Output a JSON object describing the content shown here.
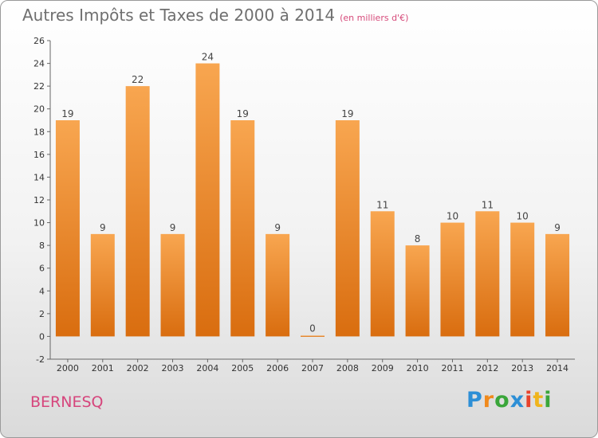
{
  "title": "Autres Impôts et Taxes de 2000 à 2014",
  "subtitle": "(en milliers d'€)",
  "commune": "BERNESQ",
  "logo": {
    "letters": [
      "P",
      "r",
      "o",
      "x",
      "i",
      "t",
      "i"
    ],
    "colors": [
      "#2d8fd6",
      "#f08a1c",
      "#3aa63a",
      "#2d8fd6",
      "#e8432c",
      "#f0b41c",
      "#3aa63a"
    ]
  },
  "colors": {
    "bar_top": "#f8a650",
    "bar_bottom": "#d96d0f",
    "title": "#6f6f6f",
    "commune": "#d6457c"
  },
  "chart_data": {
    "type": "bar",
    "categories": [
      "2000",
      "2001",
      "2002",
      "2003",
      "2004",
      "2005",
      "2006",
      "2007",
      "2008",
      "2009",
      "2010",
      "2011",
      "2012",
      "2013",
      "2014"
    ],
    "values": [
      19,
      9,
      22,
      9,
      24,
      19,
      9,
      0,
      19,
      11,
      8,
      10,
      11,
      10,
      9
    ],
    "ylim": [
      -2,
      26
    ],
    "yticks": [
      -2,
      0,
      2,
      4,
      6,
      8,
      10,
      12,
      14,
      16,
      18,
      20,
      22,
      24,
      26
    ],
    "grid": false,
    "legend": "none"
  }
}
